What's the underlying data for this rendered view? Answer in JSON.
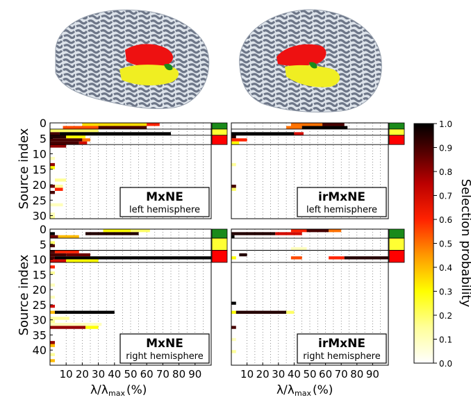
{
  "colorbar": {
    "label": "Selection probability",
    "ticks": [
      "1.0",
      "0.9",
      "0.8",
      "0.7",
      "0.6",
      "0.5",
      "0.4",
      "0.3",
      "0.2",
      "0.1",
      "0.0"
    ],
    "colors": [
      "#ffffff",
      "#ffff99",
      "#ffff00",
      "#ff9900",
      "#ff3300",
      "#cc0000",
      "#880000",
      "#000000"
    ]
  },
  "axes": {
    "ylabel": "Source index",
    "xlabel_main": "λ/λ",
    "xlabel_sub": "max",
    "xlabel_unit": "(%)",
    "xticks": [
      "10",
      "20",
      "30",
      "40",
      "50",
      "60",
      "70",
      "80",
      "90"
    ],
    "yticks_top": [
      "0",
      "5",
      "10",
      "15",
      "20",
      "25",
      "30"
    ],
    "yticks_bottom": [
      "0",
      "5",
      "10",
      "15",
      "20",
      "25",
      "30",
      "35",
      "40"
    ]
  },
  "region_colors": {
    "green": "#1a8a1a",
    "yellow": "#ffff33",
    "red": "#ff0000",
    "brain": "#dde3ea",
    "sulci": "#6d7688"
  },
  "chart_data": [
    {
      "type": "heatmap",
      "title": "MxNE",
      "subtitle": "left hemisphere",
      "ylabel": "Source index",
      "ylim": [
        0,
        31
      ],
      "x_range": [
        0,
        100
      ],
      "regions": [
        {
          "color": "green",
          "rows": [
            0,
            2
          ]
        },
        {
          "color": "yellow",
          "rows": [
            2,
            4
          ]
        },
        {
          "color": "red",
          "rows": [
            4,
            7
          ]
        }
      ],
      "cells": [
        {
          "row": 0,
          "x0": 20,
          "x1": 60,
          "p": 0.35
        },
        {
          "row": 0,
          "x0": 60,
          "x1": 68,
          "p": 0.6
        },
        {
          "row": 1,
          "x0": 8,
          "x1": 30,
          "p": 0.55
        },
        {
          "row": 1,
          "x0": 30,
          "x1": 60,
          "p": 0.9
        },
        {
          "row": 2,
          "x0": 0,
          "x1": 30,
          "p": 0.2
        },
        {
          "row": 3,
          "x0": 0,
          "x1": 6,
          "p": 0.9
        },
        {
          "row": 3,
          "x0": 6,
          "x1": 75,
          "p": 1.0
        },
        {
          "row": 4,
          "x0": 0,
          "x1": 10,
          "p": 0.95
        },
        {
          "row": 4,
          "x0": 10,
          "x1": 22,
          "p": 0.3
        },
        {
          "row": 5,
          "x0": 0,
          "x1": 20,
          "p": 0.9
        },
        {
          "row": 5,
          "x0": 20,
          "x1": 25,
          "p": 0.5
        },
        {
          "row": 6,
          "x0": 0,
          "x1": 18,
          "p": 0.9
        },
        {
          "row": 6,
          "x0": 18,
          "x1": 23,
          "p": 0.7
        },
        {
          "row": 7,
          "x0": 0,
          "x1": 10,
          "p": 0.8
        },
        {
          "row": 11,
          "x0": 0,
          "x1": 3,
          "p": 0.1
        },
        {
          "row": 13,
          "x0": 0,
          "x1": 3,
          "p": 0.8
        },
        {
          "row": 14,
          "x0": 0,
          "x1": 3,
          "p": 0.3
        },
        {
          "row": 18,
          "x0": 3,
          "x1": 10,
          "p": 0.15
        },
        {
          "row": 20,
          "x0": 0,
          "x1": 3,
          "p": 0.85
        },
        {
          "row": 20,
          "x0": 3,
          "x1": 8,
          "p": 0.15
        },
        {
          "row": 21,
          "x0": 3,
          "x1": 8,
          "p": 0.6
        },
        {
          "row": 22,
          "x0": 0,
          "x1": 3,
          "p": 0.9
        },
        {
          "row": 26,
          "x0": 0,
          "x1": 8,
          "p": 0.1
        },
        {
          "row": 29,
          "x0": 0,
          "x1": 3,
          "p": 0.1
        },
        {
          "row": 30,
          "x0": 0,
          "x1": 3,
          "p": 0.15
        }
      ]
    },
    {
      "type": "heatmap",
      "title": "irMxNE",
      "subtitle": "left hemisphere",
      "ylabel": "",
      "ylim": [
        0,
        31
      ],
      "x_range": [
        0,
        100
      ],
      "regions": [
        {
          "color": "green",
          "rows": [
            0,
            2
          ]
        },
        {
          "color": "yellow",
          "rows": [
            2,
            4
          ]
        },
        {
          "color": "red",
          "rows": [
            4,
            7
          ]
        }
      ],
      "cells": [
        {
          "row": 0,
          "x0": 38,
          "x1": 58,
          "p": 0.5
        },
        {
          "row": 0,
          "x0": 58,
          "x1": 72,
          "p": 0.9
        },
        {
          "row": 1,
          "x0": 35,
          "x1": 45,
          "p": 0.5
        },
        {
          "row": 1,
          "x0": 45,
          "x1": 74,
          "p": 1.0
        },
        {
          "row": 3,
          "x0": 0,
          "x1": 40,
          "p": 1.0
        },
        {
          "row": 3,
          "x0": 40,
          "x1": 46,
          "p": 0.7
        },
        {
          "row": 4,
          "x0": 0,
          "x1": 3,
          "p": 0.95
        },
        {
          "row": 5,
          "x0": 0,
          "x1": 10,
          "p": 0.6
        },
        {
          "row": 6,
          "x0": 0,
          "x1": 5,
          "p": 0.3
        },
        {
          "row": 13,
          "x0": 0,
          "x1": 3,
          "p": 0.15
        },
        {
          "row": 20,
          "x0": 0,
          "x1": 3,
          "p": 0.9
        },
        {
          "row": 21,
          "x0": 0,
          "x1": 3,
          "p": 0.2
        }
      ]
    },
    {
      "type": "heatmap",
      "title": "MxNE",
      "subtitle": "right hemisphere",
      "ylabel": "Source index",
      "ylim": [
        0,
        45
      ],
      "x_range": [
        0,
        100
      ],
      "regions": [
        {
          "color": "green",
          "rows": [
            0,
            3
          ]
        },
        {
          "color": "yellow",
          "rows": [
            3,
            7
          ]
        },
        {
          "color": "red",
          "rows": [
            7,
            11
          ]
        }
      ],
      "cells": [
        {
          "row": 0,
          "x0": 33,
          "x1": 50,
          "p": 0.3
        },
        {
          "row": 0,
          "x0": 50,
          "x1": 62,
          "p": 0.2
        },
        {
          "row": 1,
          "x0": 0,
          "x1": 3,
          "p": 1.0
        },
        {
          "row": 1,
          "x0": 22,
          "x1": 55,
          "p": 0.95
        },
        {
          "row": 2,
          "x0": 0,
          "x1": 5,
          "p": 0.85
        },
        {
          "row": 2,
          "x0": 5,
          "x1": 18,
          "p": 0.4
        },
        {
          "row": 4,
          "x0": 0,
          "x1": 3,
          "p": 0.2
        },
        {
          "row": 5,
          "x0": 0,
          "x1": 3,
          "p": 0.9
        },
        {
          "row": 7,
          "x0": 0,
          "x1": 3,
          "p": 0.9
        },
        {
          "row": 7,
          "x0": 3,
          "x1": 18,
          "p": 0.6
        },
        {
          "row": 8,
          "x0": 0,
          "x1": 10,
          "p": 0.9
        },
        {
          "row": 8,
          "x0": 10,
          "x1": 25,
          "p": 0.85
        },
        {
          "row": 9,
          "x0": 0,
          "x1": 3,
          "p": 0.9
        },
        {
          "row": 9,
          "x0": 3,
          "x1": 100,
          "p": 1.0
        },
        {
          "row": 10,
          "x0": 0,
          "x1": 10,
          "p": 0.7
        },
        {
          "row": 10,
          "x0": 10,
          "x1": 30,
          "p": 0.3
        },
        {
          "row": 12,
          "x0": 0,
          "x1": 3,
          "p": 0.6
        },
        {
          "row": 14,
          "x0": 0,
          "x1": 3,
          "p": 0.15
        },
        {
          "row": 18,
          "x0": 0,
          "x1": 3,
          "p": 0.1
        },
        {
          "row": 22,
          "x0": 0,
          "x1": 3,
          "p": 0.1
        },
        {
          "row": 25,
          "x0": 0,
          "x1": 3,
          "p": 0.7
        },
        {
          "row": 27,
          "x0": 0,
          "x1": 3,
          "p": 0.4
        },
        {
          "row": 27,
          "x0": 3,
          "x1": 40,
          "p": 1.0
        },
        {
          "row": 29,
          "x0": 0,
          "x1": 12,
          "p": 0.15
        },
        {
          "row": 30,
          "x0": 0,
          "x1": 3,
          "p": 0.15
        },
        {
          "row": 31,
          "x0": 0,
          "x1": 32,
          "p": 0.1
        },
        {
          "row": 32,
          "x0": 0,
          "x1": 22,
          "p": 0.8
        },
        {
          "row": 32,
          "x0": 22,
          "x1": 30,
          "p": 0.3
        },
        {
          "row": 37,
          "x0": 0,
          "x1": 3,
          "p": 0.8
        },
        {
          "row": 38,
          "x0": 0,
          "x1": 3,
          "p": 0.4
        },
        {
          "row": 41,
          "x0": 0,
          "x1": 3,
          "p": 0.15
        },
        {
          "row": 43,
          "x0": 0,
          "x1": 3,
          "p": 0.4
        }
      ]
    },
    {
      "type": "heatmap",
      "title": "irMxNE",
      "subtitle": "right hemisphere",
      "ylabel": "",
      "ylim": [
        0,
        45
      ],
      "x_range": [
        0,
        100
      ],
      "regions": [
        {
          "color": "green",
          "rows": [
            0,
            3
          ]
        },
        {
          "color": "yellow",
          "rows": [
            3,
            7
          ]
        },
        {
          "color": "red",
          "rows": [
            7,
            11
          ]
        }
      ],
      "cells": [
        {
          "row": 0,
          "x0": 38,
          "x1": 48,
          "p": 0.6
        },
        {
          "row": 0,
          "x0": 48,
          "x1": 62,
          "p": 0.9
        },
        {
          "row": 0,
          "x0": 62,
          "x1": 70,
          "p": 0.5
        },
        {
          "row": 1,
          "x0": 0,
          "x1": 28,
          "p": 0.95
        },
        {
          "row": 1,
          "x0": 28,
          "x1": 45,
          "p": 0.7
        },
        {
          "row": 2,
          "x0": 0,
          "x1": 2,
          "p": 1.0
        },
        {
          "row": 6,
          "x0": 38,
          "x1": 48,
          "p": 0.1
        },
        {
          "row": 8,
          "x0": 5,
          "x1": 10,
          "p": 0.95
        },
        {
          "row": 9,
          "x0": 0,
          "x1": 3,
          "p": 0.3
        },
        {
          "row": 9,
          "x0": 38,
          "x1": 45,
          "p": 0.55
        },
        {
          "row": 9,
          "x0": 62,
          "x1": 72,
          "p": 0.6
        },
        {
          "row": 9,
          "x0": 72,
          "x1": 100,
          "p": 0.95
        },
        {
          "row": 24,
          "x0": 0,
          "x1": 3,
          "p": 1.0
        },
        {
          "row": 27,
          "x0": 0,
          "x1": 3,
          "p": 0.3
        },
        {
          "row": 27,
          "x0": 3,
          "x1": 35,
          "p": 0.95
        },
        {
          "row": 27,
          "x0": 35,
          "x1": 40,
          "p": 0.2
        },
        {
          "row": 32,
          "x0": 0,
          "x1": 3,
          "p": 0.9
        },
        {
          "row": 36,
          "x0": 0,
          "x1": 3,
          "p": 0.1
        },
        {
          "row": 40,
          "x0": 0,
          "x1": 3,
          "p": 0.15
        }
      ]
    }
  ]
}
